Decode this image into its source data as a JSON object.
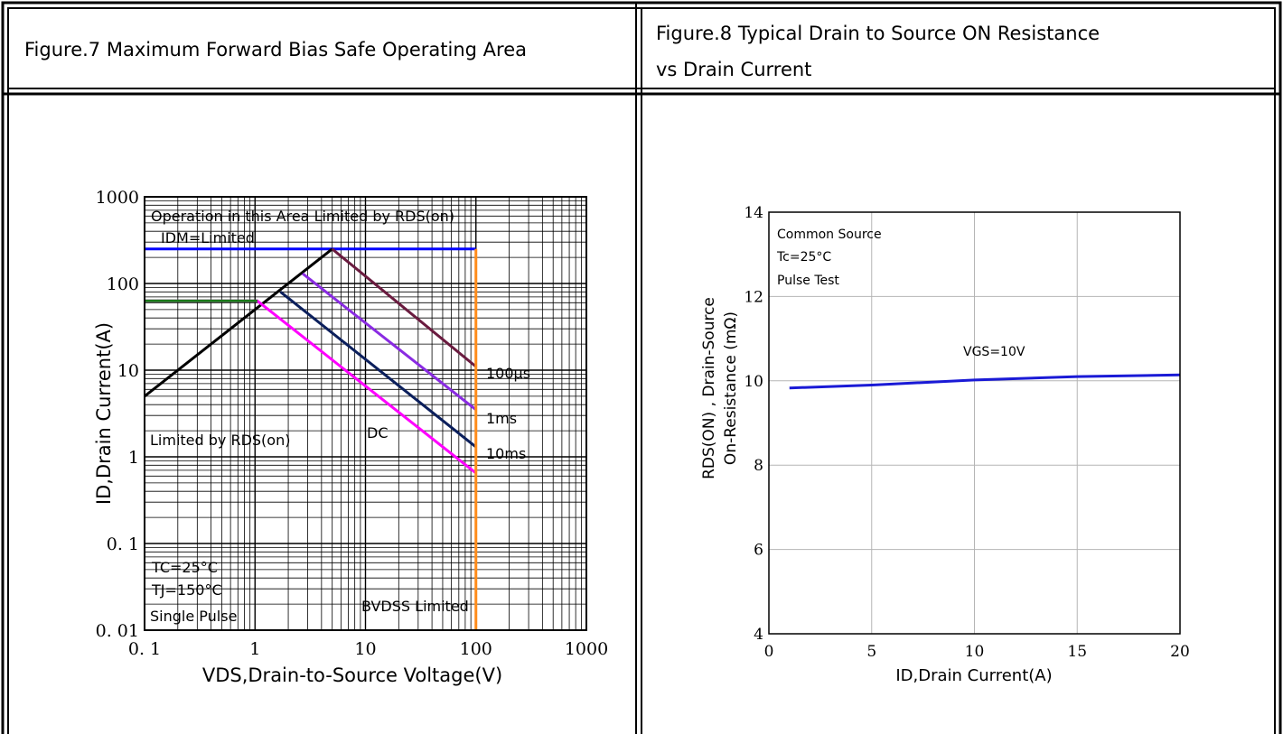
{
  "titles": {
    "left": "Figure.7 Maximum Forward Bias Safe Operating Area",
    "right_line1": "Figure.8 Typical Drain to Source ON Resistance",
    "right_line2": "vs Drain Current"
  },
  "chart_data": [
    {
      "type": "line",
      "title": "Figure.7 Maximum Forward Bias Safe Operating Area",
      "xlabel": "VDS,Drain-to-Source Voltage(V)",
      "ylabel": "ID,Drain Current(A)",
      "xscale": "log",
      "yscale": "log",
      "xlim": [
        0.1,
        1000
      ],
      "ylim": [
        0.01,
        1000
      ],
      "x_ticks": [
        "0. 1",
        "1",
        "10",
        "100",
        "1000"
      ],
      "y_ticks": [
        "0. 01",
        "0. 1",
        "1",
        "10",
        "100",
        "1000"
      ],
      "grid": true,
      "series": [
        {
          "name": "IDM=Limited",
          "color": "#0000ff",
          "x": [
            0.1,
            100
          ],
          "y": [
            250,
            250
          ]
        },
        {
          "name": "Limited by RDS(on)",
          "color": "#000000",
          "x": [
            0.1,
            5
          ],
          "y": [
            5,
            250
          ]
        },
        {
          "name": "100μs",
          "color": "#6a1b3f",
          "x": [
            5,
            100
          ],
          "y": [
            250,
            11
          ]
        },
        {
          "name": "1ms",
          "color": "#8a2be2",
          "x": [
            2.7,
            100
          ],
          "y": [
            130,
            3.5
          ]
        },
        {
          "name": "10ms",
          "color": "#0b1f5c",
          "x": [
            1.7,
            100
          ],
          "y": [
            80,
            1.3
          ]
        },
        {
          "name": "DC",
          "color": "#ff00ff",
          "x": [
            0.1,
            1.05,
            100
          ],
          "y": [
            63,
            63,
            0.65
          ]
        },
        {
          "name": "",
          "color": "#1a7a1a",
          "x": [
            0.1,
            1.05
          ],
          "y": [
            63,
            63
          ]
        },
        {
          "name": "BVDSS Limited",
          "color": "#ff8c1a",
          "x": [
            100,
            100
          ],
          "y": [
            250,
            0.01
          ]
        }
      ],
      "annotations": {
        "operation": "Operation in this Area Limited by RDS(on)",
        "idm": "IDM=Limited",
        "limited_rds": "Limited by RDS(on)",
        "dc": "DC",
        "l100us": "100μs",
        "l1ms": "1ms",
        "l10ms": "10ms",
        "tc": "TC=25°C",
        "tj": "TJ=150°C",
        "single": "Single Pulse",
        "bvdss": "BVDSS Limited"
      }
    },
    {
      "type": "line",
      "title": "Figure.8 Typical Drain to Source ON Resistance vs Drain Current",
      "xlabel": "ID,Drain Current(A)",
      "ylabel_line1": "RDS(ON) , Drain-Source",
      "ylabel_line2": "On-Resistance (mΩ)",
      "xlim": [
        0,
        20
      ],
      "ylim": [
        4,
        14
      ],
      "x_ticks": [
        "0",
        "5",
        "10",
        "15",
        "20"
      ],
      "y_ticks": [
        "4",
        "6",
        "8",
        "10",
        "12",
        "14"
      ],
      "grid": true,
      "series": [
        {
          "name": "VGS=10V",
          "color": "#1a1ad6",
          "x": [
            1,
            5,
            10,
            15,
            20
          ],
          "y": [
            9.83,
            9.9,
            10.02,
            10.1,
            10.14
          ]
        }
      ],
      "annotations": {
        "common": "Common Source",
        "tc": "Tc=25°C",
        "pulse": "Pulse Test",
        "vgs": "VGS=10V"
      }
    }
  ]
}
